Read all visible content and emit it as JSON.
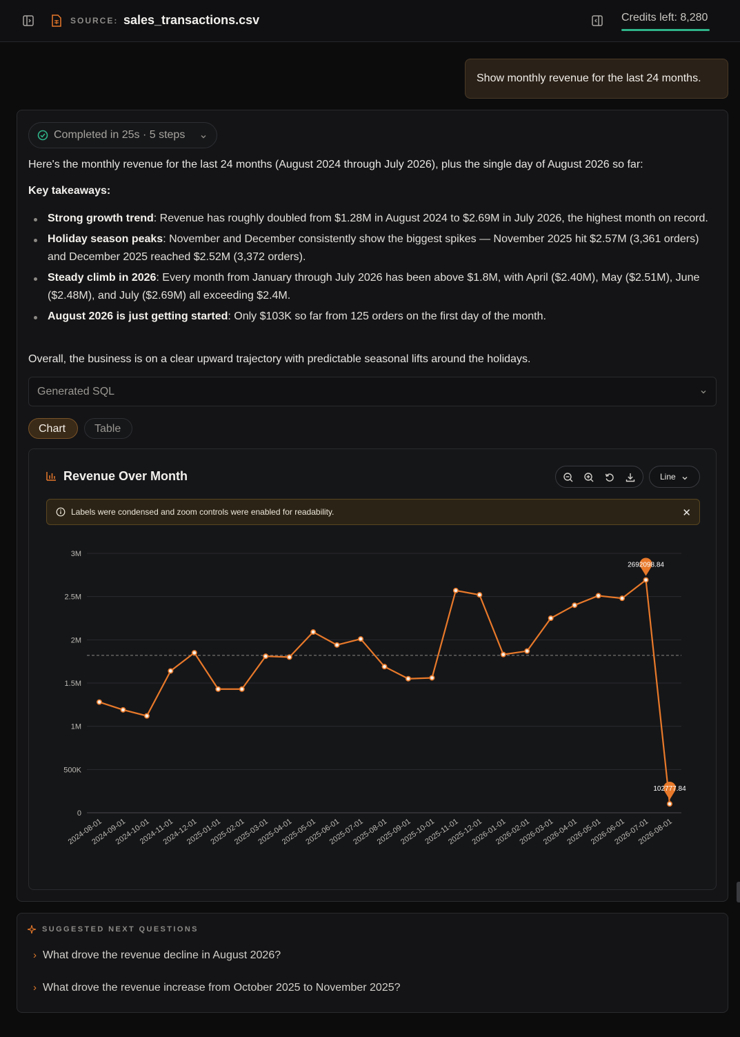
{
  "header": {
    "source_label": "SOURCE:",
    "source_name": "sales_transactions.csv",
    "credits": "Credits left: 8,280"
  },
  "user_message": "Show monthly revenue for the last 24 months.",
  "answer": {
    "status": "Completed in 25s · 5 steps",
    "intro": "Here's the monthly revenue for the last 24 months (August 2024 through July 2026), plus the single day of August 2026 so far:",
    "key_takeaways_label": "Key takeaways:",
    "bullets": [
      {
        "bold": "Strong growth trend",
        "text": ": Revenue has roughly doubled from $1.28M in August 2024 to $2.69M in July 2026, the highest month on record."
      },
      {
        "bold": "Holiday season peaks",
        "text": ": November and December consistently show the biggest spikes — November 2025 hit $2.57M (3,361 orders) and December 2025 reached $2.52M (3,372 orders)."
      },
      {
        "bold": "Steady climb in 2026",
        "text": ": Every month from January through July 2026 has been above $1.8M, with April ($2.40M), May ($2.51M), June ($2.48M), and July ($2.69M) all exceeding $2.4M."
      },
      {
        "bold": "August 2026 is just getting started",
        "text": ": Only $103K so far from 125 orders on the first day of the month."
      }
    ],
    "overall": "Overall, the business is on a clear upward trajectory with predictable seasonal lifts around the holidays.",
    "sql_label": "Generated SQL",
    "tabs": {
      "chart": "Chart",
      "table": "Table"
    }
  },
  "chart_panel": {
    "title": "Revenue Over Month",
    "type_select": "Line",
    "notice": "Labels were condensed and zoom controls were enabled for readability.",
    "close_glyph": "✕"
  },
  "chart_data": {
    "type": "line",
    "title": "Revenue Over Month",
    "xlabel": "",
    "ylabel": "",
    "ylim": [
      0,
      3000000
    ],
    "yticks": [
      {
        "v": 0,
        "label": "0"
      },
      {
        "v": 500000,
        "label": "500K"
      },
      {
        "v": 1000000,
        "label": "1M"
      },
      {
        "v": 1500000,
        "label": "1.5M"
      },
      {
        "v": 2000000,
        "label": "2M"
      },
      {
        "v": 2500000,
        "label": "2.5M"
      },
      {
        "v": 3000000,
        "label": "3M"
      }
    ],
    "x": [
      "2024-08-01",
      "2024-09-01",
      "2024-10-01",
      "2024-11-01",
      "2024-12-01",
      "2025-01-01",
      "2025-02-01",
      "2025-03-01",
      "2025-04-01",
      "2025-05-01",
      "2025-06-01",
      "2025-07-01",
      "2025-08-01",
      "2025-09-01",
      "2025-10-01",
      "2025-11-01",
      "2025-12-01",
      "2026-01-01",
      "2026-02-01",
      "2026-03-01",
      "2026-04-01",
      "2026-05-01",
      "2026-06-01",
      "2026-07-01",
      "2026-08-01"
    ],
    "values": [
      1280000,
      1190000,
      1120000,
      1640000,
      1850000,
      1430000,
      1430000,
      1810000,
      1800000,
      2090000,
      1940000,
      2010000,
      1690000,
      1550000,
      1560000,
      2570000,
      2520000,
      1830000,
      1870000,
      2250000,
      2400000,
      2510000,
      2480000,
      2692098.84,
      102777.84
    ],
    "average_line": 1820000,
    "annotations": [
      {
        "index": 23,
        "label": "2692098.84"
      },
      {
        "index": 24,
        "label": "102777.84"
      }
    ],
    "grid": true,
    "line_color": "#e8792a"
  },
  "suggestions": {
    "heading": "SUGGESTED NEXT QUESTIONS",
    "items": [
      "What drove the revenue decline in August 2026?",
      "What drove the revenue increase from October 2025 to November 2025?"
    ]
  },
  "colors": {
    "accent": "#e8792a",
    "success": "#2fb489"
  }
}
